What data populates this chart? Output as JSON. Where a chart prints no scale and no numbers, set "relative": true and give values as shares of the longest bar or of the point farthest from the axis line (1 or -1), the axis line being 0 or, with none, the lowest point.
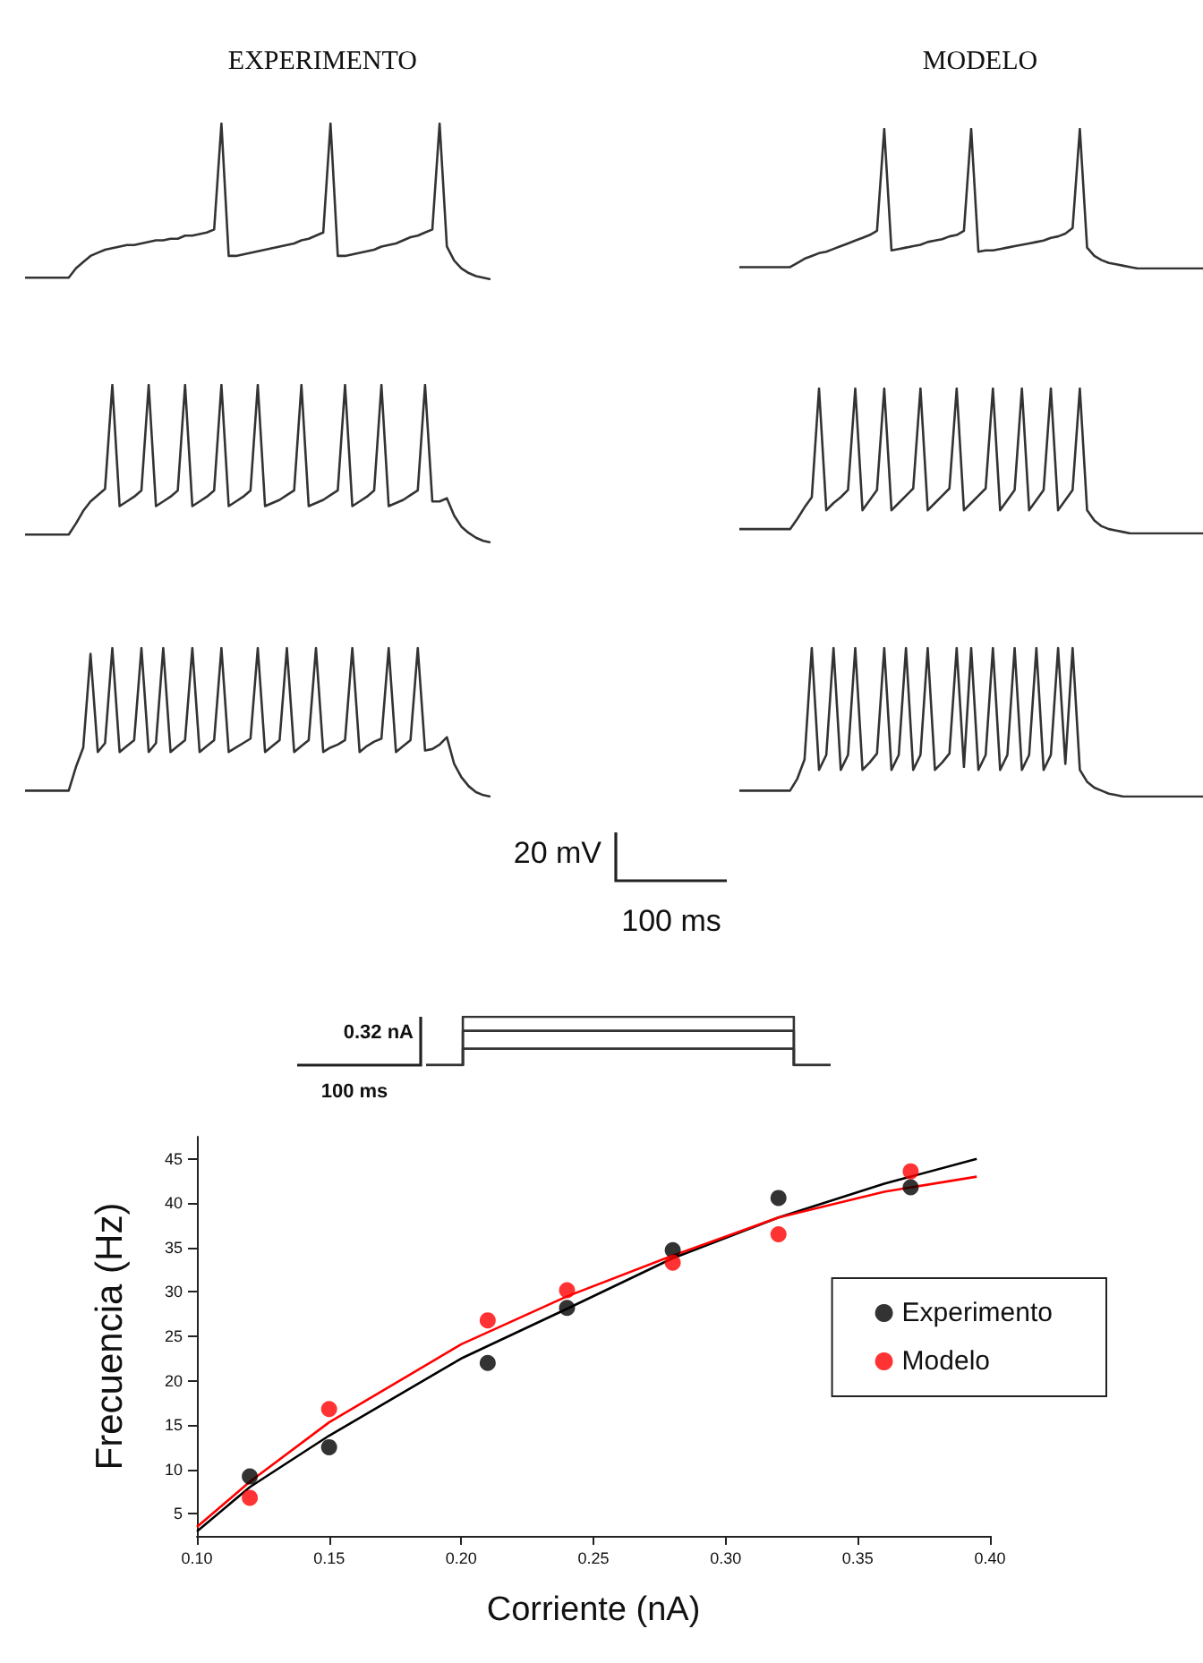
{
  "chart_data": [
    {
      "type": "line",
      "relative": true,
      "title": "EXPERIMENTO",
      "categories": [
        null,
        null,
        null,
        null,
        null,
        null,
        null,
        null,
        null,
        null,
        null,
        null,
        null,
        null,
        null,
        null,
        null,
        null,
        null,
        null,
        null,
        null,
        null,
        null,
        null,
        null,
        null,
        null,
        null,
        null,
        null,
        null,
        null,
        null,
        null,
        null,
        null,
        null,
        null,
        null,
        null,
        null,
        null,
        null,
        null,
        null,
        null,
        null,
        null,
        null,
        null,
        null,
        null,
        null,
        null,
        null,
        null,
        null,
        null,
        null,
        null,
        null,
        null,
        null,
        null
      ],
      "series": [
        {
          "color": "#333333",
          "values": [
            0.01,
            0.01,
            0.01,
            0.01,
            0.01,
            0.01,
            0.01,
            0.07,
            0.11,
            0.15,
            0.17,
            0.19,
            0.2,
            0.21,
            0.22,
            0.22,
            0.23,
            0.24,
            0.25,
            0.25,
            0.26,
            0.26,
            0.28,
            0.28,
            0.29,
            0.3,
            0.32,
            1,
            0.15,
            0.15,
            0.16,
            0.17,
            0.18,
            0.19,
            0.2,
            0.21,
            0.22,
            0.23,
            0.25,
            0.26,
            0.28,
            0.3,
            1,
            0.15,
            0.15,
            0.16,
            0.17,
            0.18,
            0.19,
            0.21,
            0.22,
            0.23,
            0.25,
            0.27,
            0.28,
            0.3,
            0.32,
            1,
            0.21,
            0.12,
            0.07,
            0.04,
            0.02,
            0.01,
            0
          ]
        }
      ]
    },
    {
      "type": "line",
      "relative": true,
      "title": "MODELO",
      "categories": [
        null,
        null,
        null,
        null,
        null,
        null,
        null,
        null,
        null,
        null,
        null,
        null,
        null,
        null,
        null,
        null,
        null,
        null,
        null,
        null,
        null,
        null,
        null,
        null,
        null,
        null,
        null,
        null,
        null,
        null,
        null,
        null,
        null,
        null,
        null,
        null,
        null,
        null,
        null,
        null,
        null,
        null,
        null,
        null,
        null,
        null,
        null,
        null,
        null,
        null,
        null,
        null,
        null,
        null,
        null,
        null,
        null,
        null,
        null,
        null,
        null,
        null,
        null,
        null,
        null
      ],
      "series": [
        {
          "color": "#333333",
          "values": [
            0.01,
            0.01,
            0.01,
            0.01,
            0.01,
            0.01,
            0.01,
            0.01,
            0.04,
            0.07,
            0.09,
            0.11,
            0.12,
            0.14,
            0.16,
            0.18,
            0.2,
            0.22,
            0.24,
            0.27,
            1,
            0.13,
            0.14,
            0.15,
            0.16,
            0.17,
            0.19,
            0.2,
            0.21,
            0.23,
            0.24,
            0.27,
            1,
            0.12,
            0.13,
            0.13,
            0.14,
            0.15,
            0.16,
            0.17,
            0.18,
            0.19,
            0.2,
            0.22,
            0.23,
            0.25,
            0.29,
            1,
            0.15,
            0.09,
            0.06,
            0.04,
            0.03,
            0.02,
            0.01,
            0,
            0,
            0,
            0,
            0,
            0,
            0,
            0,
            0,
            0
          ]
        }
      ]
    },
    {
      "type": "line",
      "relative": true,
      "categories": [
        null,
        null,
        null,
        null,
        null,
        null,
        null,
        null,
        null,
        null,
        null,
        null,
        null,
        null,
        null,
        null,
        null,
        null,
        null,
        null,
        null,
        null,
        null,
        null,
        null,
        null,
        null,
        null,
        null,
        null,
        null,
        null,
        null,
        null,
        null,
        null,
        null,
        null,
        null,
        null,
        null,
        null,
        null,
        null,
        null,
        null,
        null,
        null,
        null,
        null,
        null,
        null,
        null,
        null,
        null,
        null,
        null,
        null,
        null,
        null,
        null,
        null,
        null,
        null,
        null
      ],
      "series": [
        {
          "color": "#333333",
          "values": [
            0.05,
            0.05,
            0.05,
            0.05,
            0.05,
            0.05,
            0.05,
            0.12,
            0.2,
            0.26,
            0.3,
            0.34,
            1,
            0.23,
            0.26,
            0.29,
            0.33,
            1,
            0.23,
            0.26,
            0.29,
            0.33,
            1,
            0.23,
            0.26,
            0.29,
            0.33,
            1,
            0.23,
            0.26,
            0.29,
            0.33,
            1,
            0.23,
            0.25,
            0.27,
            0.3,
            0.33,
            1,
            0.23,
            0.25,
            0.27,
            0.3,
            0.33,
            1,
            0.23,
            0.26,
            0.29,
            0.33,
            1,
            0.23,
            0.25,
            0.27,
            0.3,
            0.33,
            1,
            0.26,
            0.26,
            0.28,
            0.17,
            0.1,
            0.06,
            0.03,
            0.01,
            0
          ]
        }
      ]
    },
    {
      "type": "line",
      "relative": true,
      "categories": [
        null,
        null,
        null,
        null,
        null,
        null,
        null,
        null,
        null,
        null,
        null,
        null,
        null,
        null,
        null,
        null,
        null,
        null,
        null,
        null,
        null,
        null,
        null,
        null,
        null,
        null,
        null,
        null,
        null,
        null,
        null,
        null,
        null,
        null,
        null,
        null,
        null,
        null,
        null,
        null,
        null,
        null,
        null,
        null,
        null,
        null,
        null,
        null,
        null,
        null,
        null,
        null,
        null,
        null,
        null,
        null,
        null,
        null,
        null,
        null,
        null,
        null,
        null,
        null,
        null
      ],
      "series": [
        {
          "color": "#333333",
          "values": [
            0.03,
            0.03,
            0.03,
            0.03,
            0.03,
            0.03,
            0.03,
            0.03,
            0.1,
            0.18,
            0.25,
            1,
            0.16,
            0.21,
            0.25,
            0.3,
            1,
            0.16,
            0.23,
            0.3,
            1,
            0.16,
            0.21,
            0.26,
            0.31,
            1,
            0.16,
            0.21,
            0.26,
            0.31,
            1,
            0.16,
            0.21,
            0.26,
            0.31,
            1,
            0.16,
            0.23,
            0.3,
            1,
            0.16,
            0.23,
            0.3,
            1,
            0.16,
            0.23,
            0.3,
            1,
            0.16,
            0.09,
            0.05,
            0.03,
            0.02,
            0.01,
            0,
            0,
            0,
            0,
            0,
            0,
            0,
            0,
            0,
            0,
            0
          ]
        }
      ]
    },
    {
      "type": "line",
      "relative": true,
      "categories": [
        null,
        null,
        null,
        null,
        null,
        null,
        null,
        null,
        null,
        null,
        null,
        null,
        null,
        null,
        null,
        null,
        null,
        null,
        null,
        null,
        null,
        null,
        null,
        null,
        null,
        null,
        null,
        null,
        null,
        null,
        null,
        null,
        null,
        null,
        null,
        null,
        null,
        null,
        null,
        null,
        null,
        null,
        null,
        null,
        null,
        null,
        null,
        null,
        null,
        null,
        null,
        null,
        null,
        null,
        null,
        null,
        null,
        null,
        null,
        null,
        null,
        null,
        null,
        null,
        null
      ],
      "series": [
        {
          "color": "#333333",
          "values": [
            0.04,
            0.04,
            0.04,
            0.04,
            0.04,
            0.04,
            0.04,
            0.2,
            0.33,
            0.96,
            0.3,
            0.36,
            1,
            0.3,
            0.34,
            0.38,
            1,
            0.3,
            0.36,
            1,
            0.3,
            0.34,
            0.38,
            1,
            0.3,
            0.34,
            0.38,
            1,
            0.3,
            0.33,
            0.36,
            0.39,
            1,
            0.3,
            0.34,
            0.38,
            1,
            0.3,
            0.34,
            0.38,
            1,
            0.3,
            0.33,
            0.35,
            0.38,
            1,
            0.3,
            0.34,
            0.37,
            0.39,
            1,
            0.3,
            0.34,
            0.38,
            1,
            0.31,
            0.32,
            0.35,
            0.4,
            0.22,
            0.13,
            0.07,
            0.03,
            0.01,
            0
          ]
        }
      ]
    },
    {
      "type": "line",
      "relative": true,
      "annotations": [
        "20 mV",
        "100 ms"
      ],
      "categories": [
        null,
        null,
        null,
        null,
        null,
        null,
        null,
        null,
        null,
        null,
        null,
        null,
        null,
        null,
        null,
        null,
        null,
        null,
        null,
        null,
        null,
        null,
        null,
        null,
        null,
        null,
        null,
        null,
        null,
        null,
        null,
        null,
        null,
        null,
        null,
        null,
        null,
        null,
        null,
        null,
        null,
        null,
        null,
        null,
        null,
        null,
        null,
        null,
        null,
        null,
        null,
        null,
        null,
        null,
        null,
        null,
        null,
        null,
        null,
        null,
        null,
        null,
        null,
        null,
        null
      ],
      "series": [
        {
          "color": "#333333",
          "values": [
            0.04,
            0.04,
            0.04,
            0.04,
            0.04,
            0.04,
            0.04,
            0.04,
            0.12,
            0.25,
            1,
            0.18,
            0.28,
            1,
            0.18,
            0.28,
            1,
            0.18,
            0.23,
            0.29,
            1,
            0.18,
            0.28,
            1,
            0.18,
            0.28,
            1,
            0.18,
            0.23,
            0.29,
            1,
            0.2,
            1,
            0.18,
            0.28,
            1,
            0.18,
            0.28,
            1,
            0.18,
            0.28,
            1,
            0.18,
            0.28,
            1,
            0.22,
            1,
            0.18,
            0.1,
            0.06,
            0.04,
            0.02,
            0.01,
            0,
            0,
            0,
            0,
            0,
            0,
            0,
            0,
            0,
            0,
            0,
            0
          ]
        }
      ]
    },
    {
      "type": "step",
      "relative": true,
      "annotations": [
        "0.32 nA",
        "100 ms"
      ],
      "categories": [
        null,
        null,
        null,
        null,
        null,
        null,
        null,
        null,
        null,
        null,
        null,
        null,
        null,
        null,
        null,
        null,
        null,
        null,
        null,
        null,
        null,
        null,
        null
      ],
      "series": [
        {
          "color": "#333333",
          "values": [
            0,
            0,
            1,
            1,
            1,
            1,
            1,
            1,
            1,
            1,
            1,
            1,
            1,
            1,
            1,
            1,
            1,
            1,
            1,
            1,
            0,
            0,
            0
          ]
        },
        {
          "color": "#333333",
          "values": [
            0,
            0,
            0.71,
            0.71,
            0.71,
            0.71,
            0.71,
            0.71,
            0.71,
            0.71,
            0.71,
            0.71,
            0.71,
            0.71,
            0.71,
            0.71,
            0.71,
            0.71,
            0.71,
            0.71,
            0,
            0,
            0
          ]
        },
        {
          "color": "#333333",
          "values": [
            0,
            0,
            0.34,
            0.34,
            0.34,
            0.34,
            0.34,
            0.34,
            0.34,
            0.34,
            0.34,
            0.34,
            0.34,
            0.34,
            0.34,
            0.34,
            0.34,
            0.34,
            0.34,
            0.34,
            0,
            0,
            0
          ]
        }
      ]
    },
    {
      "type": "scatter",
      "xlabel": "Corriente (nA)",
      "ylabel": "Frecuencia (Hz)",
      "xlim": [
        0.1,
        0.4
      ],
      "ylim": [
        2.5,
        47.5
      ],
      "xticks": [
        {
          "value": 0.1,
          "label": "0.10"
        },
        {
          "value": 0.15,
          "label": "0.15"
        },
        {
          "value": 0.2,
          "label": "0.20"
        },
        {
          "value": 0.25,
          "label": "0.25"
        },
        {
          "value": 0.3,
          "label": "0.30"
        },
        {
          "value": 0.35,
          "label": "0.35"
        },
        {
          "value": 0.4,
          "label": "0.40"
        }
      ],
      "yticks": [
        5,
        10,
        15,
        20,
        25,
        30,
        35,
        40,
        45
      ],
      "grid": false,
      "legend": "right",
      "marker": "circle",
      "series": [
        {
          "name": "Experimento",
          "color": "#000000",
          "x": [
            0.12,
            0.15,
            0.21,
            0.24,
            0.28,
            0.32,
            0.37
          ],
          "values": [
            9.2,
            12.5,
            22,
            28.2,
            34.7,
            40.6,
            41.8
          ]
        },
        {
          "name": "Modelo",
          "color": "#ff0000",
          "x": [
            0.12,
            0.15,
            0.21,
            0.24,
            0.28,
            0.32,
            0.37
          ],
          "values": [
            6.8,
            16.8,
            26.8,
            30.2,
            33.3,
            36.5,
            43.6
          ]
        },
        {
          "type": "line",
          "marker": "none",
          "color": "#000000",
          "x": [
            0.1,
            0.12,
            0.15,
            0.2,
            0.24,
            0.28,
            0.32,
            0.36,
            0.395
          ],
          "values": [
            3,
            8,
            13.8,
            22.5,
            28.1,
            33.8,
            38.4,
            42.2,
            45
          ]
        },
        {
          "type": "line",
          "marker": "none",
          "color": "#ff0000",
          "x": [
            0.1,
            0.12,
            0.15,
            0.2,
            0.24,
            0.28,
            0.32,
            0.36,
            0.395
          ],
          "values": [
            3.5,
            8.6,
            15.3,
            24.1,
            29.5,
            34.1,
            38.4,
            41.3,
            43
          ]
        }
      ]
    }
  ]
}
